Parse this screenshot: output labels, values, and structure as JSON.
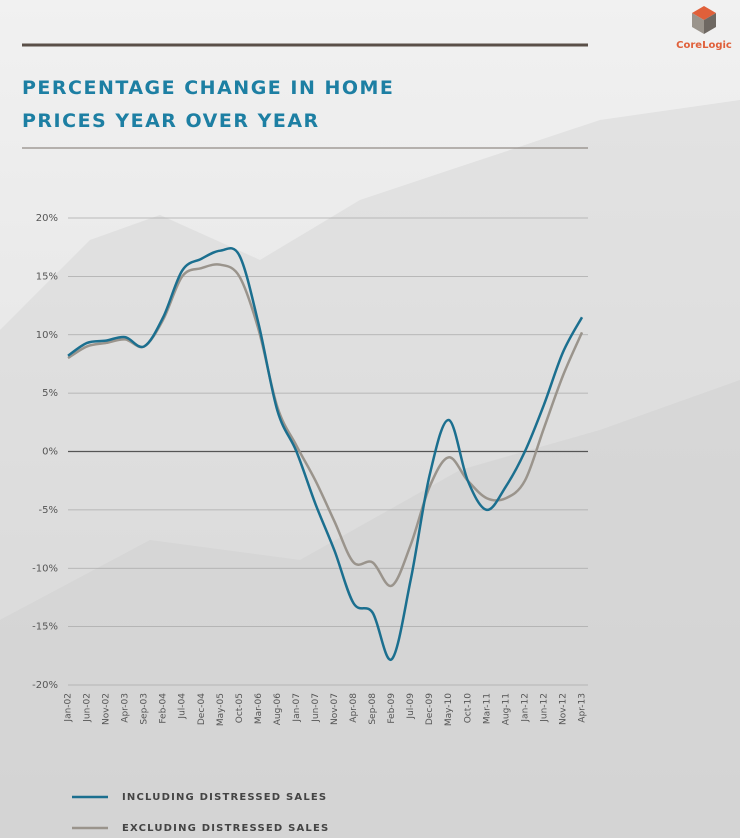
{
  "logo": "CoreLogic",
  "chart_data": {
    "type": "line",
    "title": "PERCENTAGE CHANGE IN HOME PRICES YEAR OVER YEAR",
    "categories": [
      "Jan-02",
      "Jun-02",
      "Nov-02",
      "Apr-03",
      "Sep-03",
      "Feb-04",
      "Jul-04",
      "Dec-04",
      "May-05",
      "Oct-05",
      "Mar-06",
      "Aug-06",
      "Jan-07",
      "Jun-07",
      "Nov-07",
      "Apr-08",
      "Sep-08",
      "Feb-09",
      "Jul-09",
      "Dec-09",
      "May-10",
      "Oct-10",
      "Mar-11",
      "Aug-11",
      "Jan-12",
      "Jun-12",
      "Nov-12",
      "Apr-13"
    ],
    "series": [
      {
        "name": "INCLUDING DISTRESSED SALES",
        "color": "#1b6f8f",
        "values": [
          8.2,
          9.3,
          9.5,
          9.8,
          9.0,
          11.5,
          15.5,
          16.5,
          17.2,
          16.8,
          11,
          3.5,
          0,
          -4.5,
          -8.5,
          -13,
          -13.8,
          -17.8,
          -11,
          -2,
          2.7,
          -2.5,
          -5,
          -3,
          0,
          4,
          8.5,
          11.5
        ]
      },
      {
        "name": "EXCLUDING DISTRESSED SALES",
        "color": "#9a948c",
        "values": [
          8.0,
          9.0,
          9.3,
          9.6,
          9.0,
          11.3,
          15,
          15.7,
          16,
          15,
          10.5,
          3.8,
          0.5,
          -2.5,
          -6,
          -9.5,
          -9.5,
          -11.5,
          -8,
          -3,
          -0.5,
          -2.5,
          -4,
          -4,
          -2.5,
          2,
          6.5,
          10.2
        ]
      }
    ],
    "ylim": [
      -20,
      20
    ],
    "yticks": [
      {
        "value": -20,
        "label": "-20%"
      },
      {
        "value": -15,
        "label": "-15%"
      },
      {
        "value": -10,
        "label": "-10%"
      },
      {
        "value": -5,
        "label": "-5%"
      },
      {
        "value": 0,
        "label": "0%"
      },
      {
        "value": 5,
        "label": "5%"
      },
      {
        "value": 10,
        "label": "10%"
      },
      {
        "value": 15,
        "label": "15%"
      },
      {
        "value": 20,
        "label": "20%"
      }
    ],
    "grid": true
  }
}
